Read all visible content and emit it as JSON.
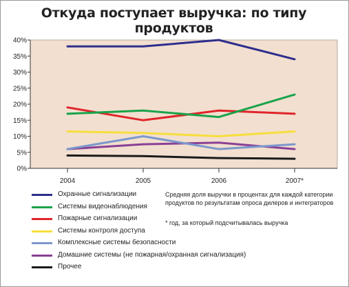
{
  "chart_data": {
    "type": "line",
    "title": "Откуда поступает выручка: по типу продуктов",
    "categories": [
      "2004",
      "2005",
      "2006",
      "2007*"
    ],
    "y_ticks": [
      "0%",
      "5%",
      "10%",
      "15%",
      "20%",
      "25%",
      "30%",
      "35%",
      "40%"
    ],
    "ylim": [
      0,
      40
    ],
    "grid": false,
    "legend_position": "bottom-left",
    "series": [
      {
        "name": "Охранные сигнализации",
        "color": "#2e2e8c",
        "values": [
          38,
          38,
          40,
          34
        ]
      },
      {
        "name": "Системы видеонаблюдения",
        "color": "#1aa34a",
        "values": [
          17,
          18,
          16,
          23
        ]
      },
      {
        "name": "Пожарные сигнализации",
        "color": "#e0242a",
        "values": [
          19,
          15,
          18,
          17
        ]
      },
      {
        "name": "Системы контроля доступа",
        "color": "#f6de3c",
        "values": [
          11.5,
          11,
          10,
          11.5
        ]
      },
      {
        "name": "Комплексные системы безопасности",
        "color": "#7b98cc",
        "values": [
          6,
          10,
          6,
          7.5
        ]
      },
      {
        "name": "Домашние системы (не пожарная/охранная сигнализация)",
        "color": "#8a3f94",
        "values": [
          6,
          7.5,
          8,
          6
        ]
      },
      {
        "name": "Прочее",
        "color": "#1a1a1a",
        "values": [
          4,
          3.8,
          3.2,
          3
        ]
      }
    ],
    "plot_background": "#f2dfd0",
    "note": "Средняя доля выручки в процентах для каждой категории продуктов по результатам опроса дилеров и интеграторов",
    "footnote": "* год, за который подсчитывалась выручка"
  }
}
